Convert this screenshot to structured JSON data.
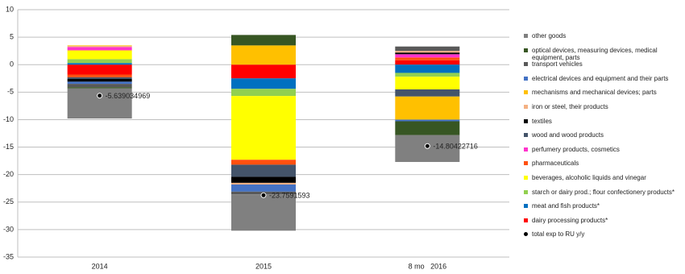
{
  "chart_data": {
    "type": "bar",
    "stacked": true,
    "categories": [
      "2014",
      "2015",
      "8 mo   2016"
    ],
    "ylim": [
      -35,
      10
    ],
    "yticks": [
      -35,
      -30,
      -25,
      -20,
      -15,
      -10,
      -5,
      0,
      5,
      10
    ],
    "grid": true,
    "series": [
      {
        "name": "dairy processing products*",
        "color": "#ff0000",
        "values": [
          -1.8,
          -2.5,
          0.8
        ]
      },
      {
        "name": "meat and fish products*",
        "color": "#0070c0",
        "values": [
          0.3,
          -1.9,
          -1.5
        ]
      },
      {
        "name": "starch or dairy prod.; flour confectionery products*",
        "color": "#92d050",
        "values": [
          0.7,
          -1.3,
          -0.7
        ]
      },
      {
        "name": "beverages, alcoholic liquids and vinegar",
        "color": "#ffff00",
        "values": [
          1.6,
          -11.6,
          -2.3
        ]
      },
      {
        "name": "pharmaceuticals",
        "color": "#ff5010",
        "values": [
          -0.5,
          -0.9,
          0.5
        ]
      },
      {
        "name": "perfumery products, cosmetics",
        "color": "#ff33cc",
        "values": [
          0.6,
          0,
          0.6
        ]
      },
      {
        "name": "wood and wood products",
        "color": "#44546a",
        "values": [
          -0.3,
          -2.2,
          -1.3
        ]
      },
      {
        "name": "textiles",
        "color": "#000000",
        "values": [
          -0.5,
          -1.1,
          0.3
        ]
      },
      {
        "name": "iron or steel, their products",
        "color": "#f4b183",
        "values": [
          0.2,
          -0.3,
          0.3
        ]
      },
      {
        "name": "mechanisms and mechanical devices; parts",
        "color": "#ffc000",
        "values": [
          0.1,
          3.5,
          -4.2
        ]
      },
      {
        "name": "electrical devices and equipment and their parts",
        "color": "#4472c4",
        "values": [
          -0.4,
          -1.3,
          -0.3
        ]
      },
      {
        "name": "transport vehicles",
        "color": "#595959",
        "values": [
          -0.6,
          -0.5,
          0.8
        ]
      },
      {
        "name": "optical devices, measuring devices, medical equipment, parts",
        "color": "#375623",
        "values": [
          -0.2,
          1.9,
          -2.5
        ]
      },
      {
        "name": "other goods",
        "color": "#808080",
        "values": [
          -5.5,
          -6.6,
          -4.9
        ]
      }
    ],
    "total": {
      "name": "total exp to RU y/y",
      "color": "#000000",
      "values": [
        -5.639034969,
        -23.7591593,
        -14.80422716
      ]
    }
  }
}
